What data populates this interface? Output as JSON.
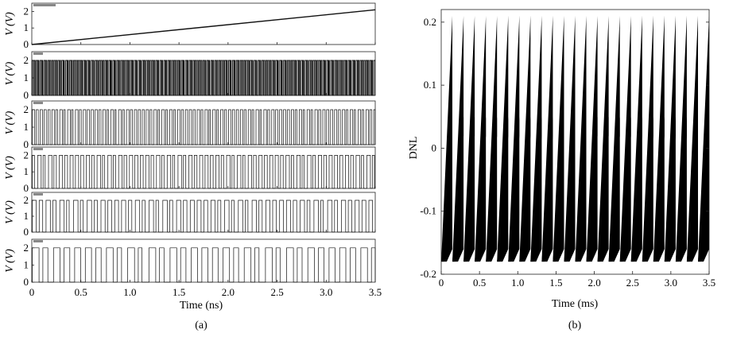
{
  "chart_data": [
    {
      "type": "line",
      "panel": "a",
      "caption": "(a)",
      "xlabel": "Time (ns)",
      "xlim": [
        0,
        3.5
      ],
      "xticks": [
        "0",
        "0.5",
        "1.0",
        "1.5",
        "2.0",
        "2.5",
        "3.0",
        "3.5"
      ],
      "ylabel": "V (V)",
      "subplots": [
        {
          "kind": "ramp",
          "ylim": [
            0,
            2.5
          ],
          "yticks": [
            "0",
            "1",
            "2"
          ],
          "y_start": 0.0,
          "y_end": 2.1
        },
        {
          "kind": "pulse",
          "ylim": [
            0,
            2.5
          ],
          "yticks": [
            "0",
            "1",
            "2"
          ],
          "high": 2.0,
          "period_ns": 0.02
        },
        {
          "kind": "pulse",
          "ylim": [
            0,
            2.5
          ],
          "yticks": [
            "0",
            "1",
            "2"
          ],
          "high": 2.0,
          "period_ns": 0.04
        },
        {
          "kind": "pulse",
          "ylim": [
            0,
            2.5
          ],
          "yticks": [
            "0",
            "1",
            "2"
          ],
          "high": 2.0,
          "period_ns": 0.055
        },
        {
          "kind": "pulse",
          "ylim": [
            0,
            2.5
          ],
          "yticks": [
            "0",
            "1",
            "2"
          ],
          "high": 2.0,
          "period_ns": 0.07
        },
        {
          "kind": "pulse",
          "ylim": [
            0,
            2.5
          ],
          "yticks": [
            "0",
            "1",
            "2"
          ],
          "high": 2.0,
          "period_ns": 0.108
        }
      ]
    },
    {
      "type": "line",
      "panel": "b",
      "caption": "(b)",
      "xlabel": "Time (ms)",
      "ylabel": "DNL",
      "xlim": [
        0,
        3.5
      ],
      "ylim": [
        -0.2,
        0.22
      ],
      "xticks": [
        "0",
        "0.5",
        "1.0",
        "1.5",
        "2.0",
        "2.5",
        "3.0",
        "3.5"
      ],
      "yticks": [
        "-0.2",
        "-0.1",
        "0",
        "0.1",
        "0.2"
      ],
      "sawtooth_count": 24,
      "amplitude_max": 0.21,
      "amplitude_min": -0.18
    }
  ]
}
